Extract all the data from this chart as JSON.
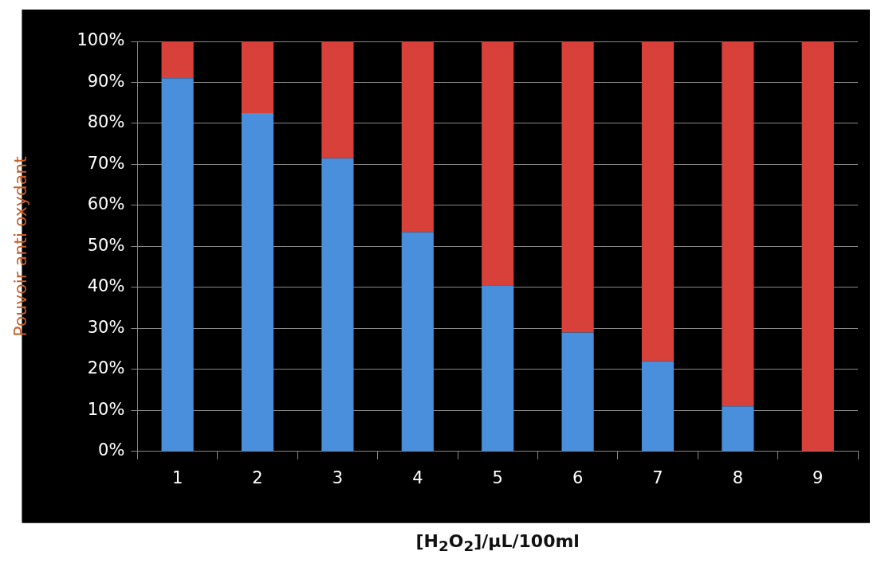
{
  "chart_data": {
    "type": "bar",
    "stacked": true,
    "xlabel": "[H$_{2}$O$_{2}$]/μL/100ml",
    "ylabel": "Pouvoir anti oxydant",
    "categories": [
      "1",
      "2",
      "3",
      "4",
      "5",
      "6",
      "7",
      "8",
      "9"
    ],
    "series": [
      {
        "color": "#4a8fdb",
        "values": [
          91,
          82.5,
          71.5,
          53.5,
          40.5,
          29,
          22,
          11,
          0
        ]
      },
      {
        "color": "#d8403a",
        "values": [
          9,
          17.5,
          28.5,
          46.5,
          59.5,
          71,
          78,
          89,
          100
        ]
      }
    ],
    "ylim": [
      0,
      100
    ],
    "yticks": [
      {
        "value": 0,
        "label": "0%"
      },
      {
        "value": 10,
        "label": "10%"
      },
      {
        "value": 20,
        "label": "20%"
      },
      {
        "value": 30,
        "label": "30%"
      },
      {
        "value": 40,
        "label": "40%"
      },
      {
        "value": 50,
        "label": "50%"
      },
      {
        "value": 60,
        "label": "60%"
      },
      {
        "value": 70,
        "label": "70%"
      },
      {
        "value": 80,
        "label": "80%"
      },
      {
        "value": 90,
        "label": "90%"
      },
      {
        "value": 100,
        "label": "100%"
      }
    ],
    "grid": "y",
    "legend": false
  }
}
